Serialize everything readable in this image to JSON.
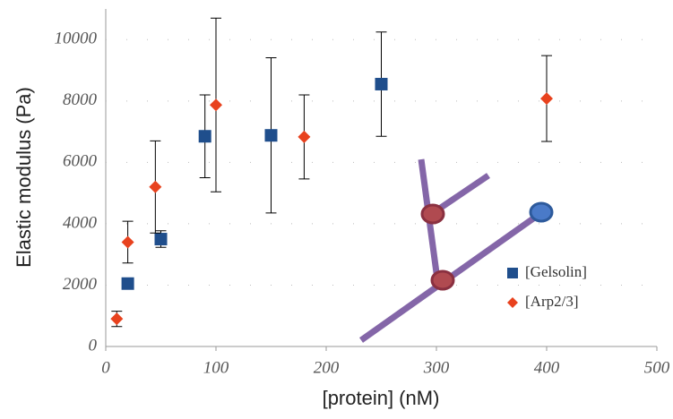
{
  "chart_data": {
    "type": "scatter",
    "xlabel": "[protein] (nM)",
    "ylabel": "Elastic modulus (Pa)",
    "xlim": [
      0,
      500
    ],
    "xticks": [
      0,
      100,
      200,
      300,
      400,
      500
    ],
    "ylim": [
      0,
      11000
    ],
    "yticks": [
      0,
      2000,
      4000,
      6000,
      8000,
      10000
    ],
    "grid": true,
    "legend": "right",
    "series": [
      {
        "name": "[Gelsolin]",
        "color": "#1f4e8c",
        "marker": "square",
        "x": [
          20,
          50,
          90,
          150,
          250
        ],
        "values": [
          2050,
          3500,
          6850,
          6880,
          8550
        ],
        "errors": [
          150,
          270,
          1350,
          2530,
          1700
        ]
      },
      {
        "name": "[Arp2/3]",
        "color": "#e8421e",
        "marker": "diamond",
        "x": [
          10,
          20,
          45,
          100,
          180,
          400
        ],
        "values": [
          900,
          3400,
          5200,
          7870,
          6830,
          8080
        ],
        "errors": [
          250,
          680,
          1500,
          2830,
          1370,
          1400
        ]
      }
    ]
  }
}
